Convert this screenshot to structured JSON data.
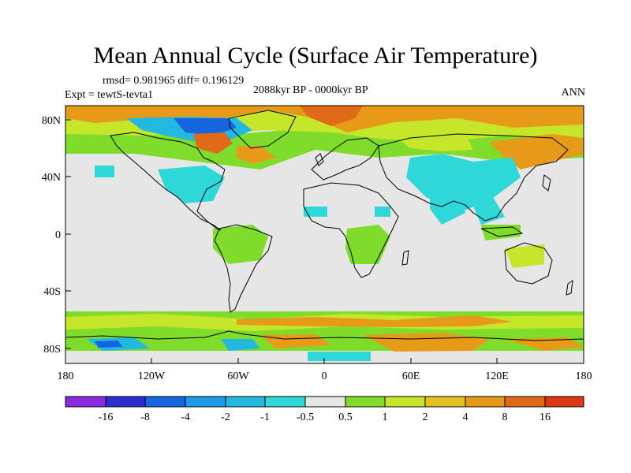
{
  "title": "Mean Annual Cycle (Surface Air Temperature)",
  "stats": "rmsd= 0.981965 diff= 0.196129",
  "experiment": "Expt = tewtS-tevta1",
  "period": "2088kyr BP - 0000kyr BP",
  "season": "ANN",
  "map": {
    "lat_ticks": [
      "80N",
      "40N",
      "0",
      "40S",
      "80S"
    ],
    "lon_ticks": [
      "180",
      "120W",
      "60W",
      "0",
      "60E",
      "120E",
      "180"
    ]
  },
  "colorbar": {
    "colors": [
      "#8a2be2",
      "#2e2ed0",
      "#1565e0",
      "#1f9be8",
      "#22b8e0",
      "#2ed8d8",
      "#e6e6e6",
      "#7fdc2a",
      "#c6e62a",
      "#e6c020",
      "#e69a18",
      "#e06a18",
      "#dc3812"
    ],
    "labels": [
      "-16",
      "-8",
      "-4",
      "-2",
      "-1",
      "-0.5",
      "0.5",
      "1",
      "2",
      "4",
      "8",
      "16"
    ]
  },
  "palette": {
    "neutral": "#e6e6e6",
    "warm1": "#7fdc2a",
    "warm2": "#c6e62a",
    "warm3": "#e6c020",
    "warm4": "#e69a18",
    "warm5": "#e06a18",
    "cool1": "#2ed8d8",
    "cool2": "#22b8e0",
    "cool3": "#1f9be8",
    "cool4": "#1565e0"
  }
}
